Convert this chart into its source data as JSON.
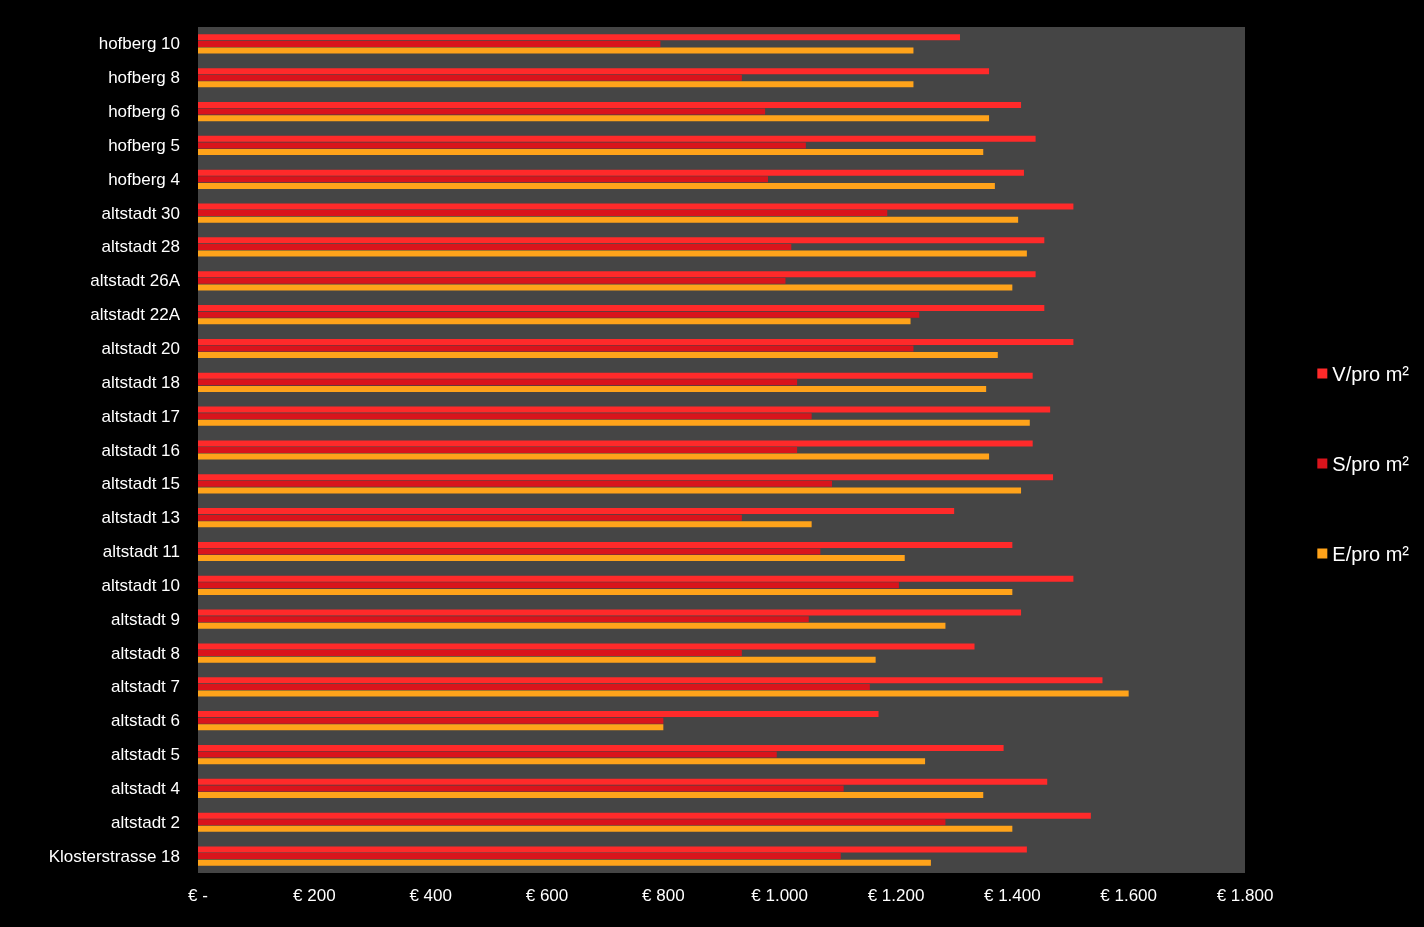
{
  "chart_data": {
    "type": "bar",
    "orientation": "horizontal",
    "categories": [
      "hofberg 10",
      "hofberg 8",
      "hofberg 6",
      "hofberg 5",
      "hofberg 4",
      "altstadt 30",
      "altstadt 28",
      "altstadt 26A",
      "altstadt 22A",
      "altstadt 20",
      "altstadt 18",
      "altstadt 17",
      "altstadt 16",
      "altstadt 15",
      "altstadt 13",
      "altstadt 11",
      "altstadt 10",
      "altstadt 9",
      "altstadt 8",
      "altstadt 7",
      "altstadt 6",
      "altstadt 5",
      "altstadt 4",
      "altstadt 2",
      "Klosterstrasse 18"
    ],
    "series": [
      {
        "name": "V/pro m²",
        "color": "#ff2a2a",
        "values": [
          1310,
          1360,
          1415,
          1440,
          1420,
          1505,
          1455,
          1440,
          1455,
          1505,
          1435,
          1465,
          1435,
          1470,
          1300,
          1400,
          1505,
          1415,
          1335,
          1555,
          1170,
          1385,
          1460,
          1535,
          1425
        ]
      },
      {
        "name": "S/pro m²",
        "color": "#d9141c",
        "values": [
          795,
          935,
          975,
          1045,
          980,
          1185,
          1020,
          1010,
          1240,
          1230,
          1030,
          1055,
          1030,
          1090,
          935,
          1070,
          1205,
          1050,
          935,
          1155,
          800,
          995,
          1110,
          1285,
          1105
        ]
      },
      {
        "name": "E/pro m²",
        "color": "#ffa31a",
        "values": [
          1230,
          1230,
          1360,
          1350,
          1370,
          1410,
          1425,
          1400,
          1225,
          1375,
          1355,
          1430,
          1360,
          1415,
          1055,
          1215,
          1400,
          1285,
          1165,
          1600,
          800,
          1250,
          1350,
          1400,
          1260
        ]
      }
    ],
    "xlim": [
      0,
      1800
    ],
    "xticks": [
      {
        "value": 0,
        "label": "€ -"
      },
      {
        "value": 200,
        "label": "€ 200"
      },
      {
        "value": 400,
        "label": "€ 400"
      },
      {
        "value": 600,
        "label": "€ 600"
      },
      {
        "value": 800,
        "label": "€ 800"
      },
      {
        "value": 1000,
        "label": "€ 1.000"
      },
      {
        "value": 1200,
        "label": "€ 1.200"
      },
      {
        "value": 1400,
        "label": "€ 1.400"
      },
      {
        "value": 1600,
        "label": "€ 1.600"
      },
      {
        "value": 1800,
        "label": "€ 1.800"
      }
    ],
    "legend": "right",
    "grid": false
  }
}
